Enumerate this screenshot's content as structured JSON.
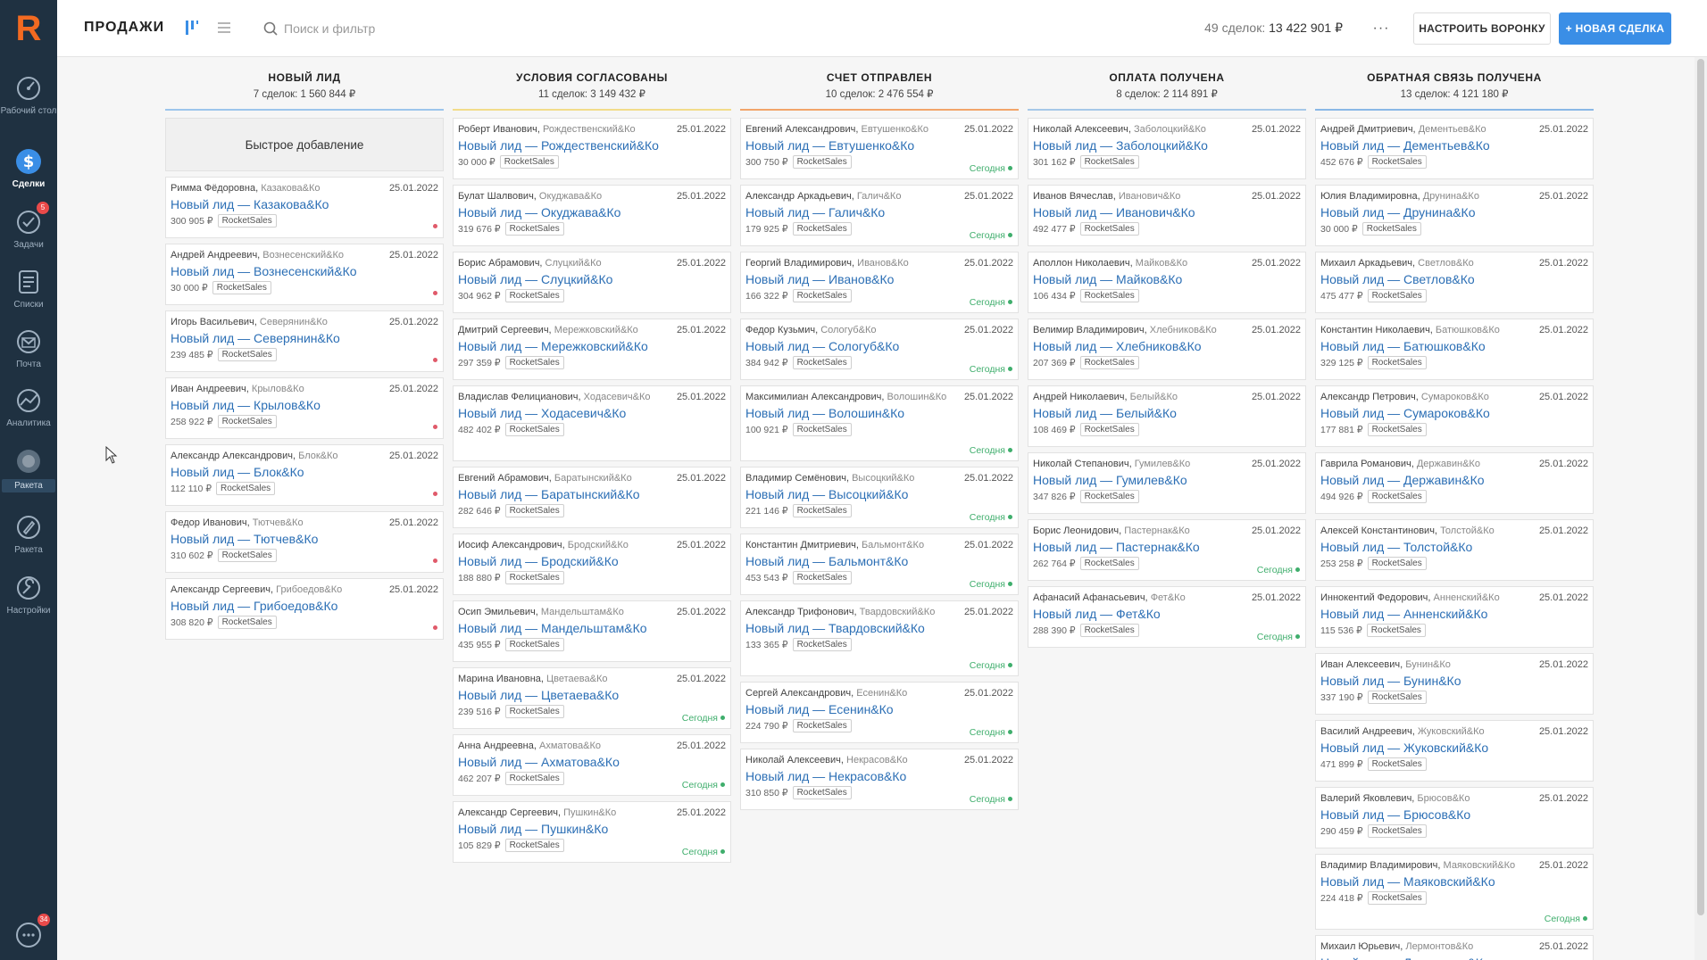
{
  "sidebar": {
    "logo": "R",
    "items": [
      {
        "label": "Рабочий стол",
        "icon": "dashboard-icon"
      },
      {
        "label": "Сделки",
        "icon": "deals-icon"
      },
      {
        "label": "Задачи",
        "icon": "tasks-icon",
        "badge": "5"
      },
      {
        "label": "Списки",
        "icon": "lists-icon"
      },
      {
        "label": "Почта",
        "icon": "mail-icon"
      },
      {
        "label": "Аналитика",
        "icon": "analytics-icon"
      },
      {
        "label": "Ракета",
        "icon": "rocket-circle-icon"
      },
      {
        "label": "Ракета",
        "icon": "rocket-icon"
      },
      {
        "label": "Настройки",
        "icon": "settings-icon"
      }
    ],
    "chat_badge": "34"
  },
  "header": {
    "title": "ПРОДАЖИ",
    "search_placeholder": "Поиск и фильтр",
    "summary_count": "49 сделок:",
    "summary_amount": "13 422 901 ₽",
    "more_label": "···",
    "funnel_label": "НАСТРОИТЬ ВОРОНКУ",
    "new_deal_label": "+ НОВАЯ СДЕЛКА"
  },
  "colors": {
    "accent": "#3a8ee6",
    "link": "#2c6fb5",
    "today": "#3fae6c",
    "overdue": "#e05a6a",
    "col_bars": [
      "#9cc5ec",
      "#f2dc8a",
      "#f2a56a",
      "#a6c8e8",
      "#8ab8e6"
    ]
  },
  "board": {
    "quick_add": "Быстрое добавление",
    "tag": "RocketSales",
    "date": "25.01.2022",
    "today_label": "Сегодня",
    "columns": [
      {
        "title": "НОВЫЙ ЛИД",
        "subtitle": "7 сделок: 1 560 844 ₽",
        "quick_add": true,
        "cards": [
          {
            "contact": "Римма Фёдоровна,",
            "company": "Казакова&Ко",
            "title": "Новый лид — Казакова&Ко",
            "amount": "300 905 ₽",
            "status": "dot"
          },
          {
            "contact": "Андрей Андреевич,",
            "company": "Вознесенский&Ко",
            "title": "Новый лид — Вознесенский&Ко",
            "amount": "30 000 ₽",
            "status": "dot"
          },
          {
            "contact": "Игорь Васильевич,",
            "company": "Северянин&Ко",
            "title": "Новый лид — Северянин&Ко",
            "amount": "239 485 ₽",
            "status": "dot"
          },
          {
            "contact": "Иван Андреевич,",
            "company": "Крылов&Ко",
            "title": "Новый лид — Крылов&Ко",
            "amount": "258 922 ₽",
            "status": "dot"
          },
          {
            "contact": "Александр Александрович,",
            "company": "Блок&Ко",
            "title": "Новый лид — Блок&Ко",
            "amount": "112 110 ₽",
            "status": "dot"
          },
          {
            "contact": "Федор Иванович,",
            "company": "Тютчев&Ко",
            "title": "Новый лид — Тютчев&Ко",
            "amount": "310 602 ₽",
            "status": "dot"
          },
          {
            "contact": "Александр Сергеевич,",
            "company": "Грибоедов&Ко",
            "title": "Новый лид — Грибоедов&Ко",
            "amount": "308 820 ₽",
            "status": "dot"
          }
        ]
      },
      {
        "title": "УСЛОВИЯ СОГЛАСОВАНЫ",
        "subtitle": "11 сделок: 3 149 432 ₽",
        "cards": [
          {
            "contact": "Роберт Иванович,",
            "company": "Рождественский&Ко",
            "title": "Новый лид — Рождественский&Ко",
            "amount": "30 000 ₽",
            "status": ""
          },
          {
            "contact": "Булат Шалвович,",
            "company": "Окуджава&Ко",
            "title": "Новый лид — Окуджава&Ко",
            "amount": "319 676 ₽",
            "status": ""
          },
          {
            "contact": "Борис Абрамович,",
            "company": "Слуцкий&Ко",
            "title": "Новый лид — Слуцкий&Ко",
            "amount": "304 962 ₽",
            "status": ""
          },
          {
            "contact": "Дмитрий Сергеевич,",
            "company": "Мережковский&Ко",
            "title": "Новый лид — Мережковский&Ко",
            "amount": "297 359 ₽",
            "status": ""
          },
          {
            "contact": "Владислав Фелицианович,",
            "company": "Ходасевич&Ко",
            "title": "Новый лид — Ходасевич&Ко",
            "amount": "482 402 ₽",
            "status": "",
            "tall": true
          },
          {
            "contact": "Евгений Абрамович,",
            "company": "Баратынский&Ко",
            "title": "Новый лид — Баратынский&Ко",
            "amount": "282 646 ₽",
            "status": ""
          },
          {
            "contact": "Иосиф Александрович,",
            "company": "Бродский&Ко",
            "title": "Новый лид — Бродский&Ко",
            "amount": "188 880 ₽",
            "status": ""
          },
          {
            "contact": "Осип Эмильевич,",
            "company": "Мандельштам&Ко",
            "title": "Новый лид — Мандельштам&Ко",
            "amount": "435 955 ₽",
            "status": ""
          },
          {
            "contact": "Марина Ивановна,",
            "company": "Цветаева&Ко",
            "title": "Новый лид — Цветаева&Ко",
            "amount": "239 516 ₽",
            "status": "today"
          },
          {
            "contact": "Анна Андреевна,",
            "company": "Ахматова&Ко",
            "title": "Новый лид — Ахматова&Ко",
            "amount": "462 207 ₽",
            "status": "today"
          },
          {
            "contact": "Александр Сергеевич,",
            "company": "Пушкин&Ко",
            "title": "Новый лид — Пушкин&Ко",
            "amount": "105 829 ₽",
            "status": "today"
          }
        ]
      },
      {
        "title": "СЧЕТ ОТПРАВЛЕН",
        "subtitle": "10 сделок: 2 476 554 ₽",
        "cards": [
          {
            "contact": "Евгений Александрович,",
            "company": "Евтушенко&Ко",
            "title": "Новый лид — Евтушенко&Ко",
            "amount": "300 750 ₽",
            "status": "today"
          },
          {
            "contact": "Александр Аркадьевич,",
            "company": "Галич&Ко",
            "title": "Новый лид — Галич&Ко",
            "amount": "179 925 ₽",
            "status": "today"
          },
          {
            "contact": "Георгий Владимирович,",
            "company": "Иванов&Ко",
            "title": "Новый лид — Иванов&Ко",
            "amount": "166 322 ₽",
            "status": "today"
          },
          {
            "contact": "Федор Кузьмич,",
            "company": "Сологуб&Ко",
            "title": "Новый лид — Сологуб&Ко",
            "amount": "384 942 ₽",
            "status": "today"
          },
          {
            "contact": "Максимилиан Александрович,",
            "company": "Волошин&Ко",
            "title": "Новый лид — Волошин&Ко",
            "amount": "100 921 ₽",
            "status": "today",
            "tall": true
          },
          {
            "contact": "Владимир Семёнович,",
            "company": "Высоцкий&Ко",
            "title": "Новый лид — Высоцкий&Ко",
            "amount": "221 146 ₽",
            "status": "today"
          },
          {
            "contact": "Константин Дмитриевич,",
            "company": "Бальмонт&Ко",
            "title": "Новый лид — Бальмонт&Ко",
            "amount": "453 543 ₽",
            "status": "today"
          },
          {
            "contact": "Александр Трифонович,",
            "company": "Твардовский&Ко",
            "title": "Новый лид — Твардовский&Ко",
            "amount": "133 365 ₽",
            "status": "today",
            "tall": true
          },
          {
            "contact": "Сергей Александрович,",
            "company": "Есенин&Ко",
            "title": "Новый лид — Есенин&Ко",
            "amount": "224 790 ₽",
            "status": "today"
          },
          {
            "contact": "Николай Алексеевич,",
            "company": "Некрасов&Ко",
            "title": "Новый лид — Некрасов&Ко",
            "amount": "310 850 ₽",
            "status": "today"
          }
        ]
      },
      {
        "title": "ОПЛАТА ПОЛУЧЕНА",
        "subtitle": "8 сделок: 2 114 891 ₽",
        "cards": [
          {
            "contact": "Николай Алексеевич,",
            "company": "Заболоцкий&Ко",
            "title": "Новый лид — Заболоцкий&Ко",
            "amount": "301 162 ₽",
            "status": ""
          },
          {
            "contact": "Иванов Вячеслав,",
            "company": "Иванович&Ко",
            "title": "Новый лид — Иванович&Ко",
            "amount": "492 477 ₽",
            "status": ""
          },
          {
            "contact": "Аполлон Николаевич,",
            "company": "Майков&Ко",
            "title": "Новый лид — Майков&Ко",
            "amount": "106 434 ₽",
            "status": ""
          },
          {
            "contact": "Велимир Владимирович,",
            "company": "Хлебников&Ко",
            "title": "Новый лид — Хлебников&Ко",
            "amount": "207 369 ₽",
            "status": ""
          },
          {
            "contact": "Андрей Николаевич,",
            "company": "Белый&Ко",
            "title": "Новый лид — Белый&Ко",
            "amount": "108 469 ₽",
            "status": ""
          },
          {
            "contact": "Николай Степанович,",
            "company": "Гумилев&Ко",
            "title": "Новый лид — Гумилев&Ко",
            "amount": "347 826 ₽",
            "status": ""
          },
          {
            "contact": "Борис Леонидович,",
            "company": "Пастернак&Ко",
            "title": "Новый лид — Пастернак&Ко",
            "amount": "262 764 ₽",
            "status": "today"
          },
          {
            "contact": "Афанасий Афанасьевич,",
            "company": "Фет&Ко",
            "title": "Новый лид — Фет&Ко",
            "amount": "288 390 ₽",
            "status": "today"
          }
        ]
      },
      {
        "title": "ОБРАТНАЯ СВЯЗЬ ПОЛУЧЕНА",
        "subtitle": "13 сделок: 4 121 180 ₽",
        "cards": [
          {
            "contact": "Андрей Дмитриевич,",
            "company": "Дементьев&Ко",
            "title": "Новый лид — Дементьев&Ко",
            "amount": "452 676 ₽",
            "status": ""
          },
          {
            "contact": "Юлия Владимировна,",
            "company": "Друнина&Ко",
            "title": "Новый лид — Друнина&Ко",
            "amount": "30 000 ₽",
            "status": ""
          },
          {
            "contact": "Михаил Аркадьевич,",
            "company": "Светлов&Ко",
            "title": "Новый лид — Светлов&Ко",
            "amount": "475 477 ₽",
            "status": ""
          },
          {
            "contact": "Константин Николаевич,",
            "company": "Батюшков&Ко",
            "title": "Новый лид — Батюшков&Ко",
            "amount": "329 125 ₽",
            "status": ""
          },
          {
            "contact": "Александр Петрович,",
            "company": "Сумароков&Ко",
            "title": "Новый лид — Сумароков&Ко",
            "amount": "177 881 ₽",
            "status": ""
          },
          {
            "contact": "Гаврила Романович,",
            "company": "Державин&Ко",
            "title": "Новый лид — Державин&Ко",
            "amount": "494 926 ₽",
            "status": ""
          },
          {
            "contact": "Алексей Константинович,",
            "company": "Толстой&Ко",
            "title": "Новый лид — Толстой&Ко",
            "amount": "253 258 ₽",
            "status": ""
          },
          {
            "contact": "Иннокентий Федорович,",
            "company": "Анненский&Ко",
            "title": "Новый лид — Анненский&Ко",
            "amount": "115 536 ₽",
            "status": ""
          },
          {
            "contact": "Иван Алексеевич,",
            "company": "Бунин&Ко",
            "title": "Новый лид — Бунин&Ко",
            "amount": "337 190 ₽",
            "status": ""
          },
          {
            "contact": "Василий Андреевич,",
            "company": "Жуковский&Ко",
            "title": "Новый лид — Жуковский&Ко",
            "amount": "471 899 ₽",
            "status": ""
          },
          {
            "contact": "Валерий Яковлевич,",
            "company": "Брюсов&Ко",
            "title": "Новый лид — Брюсов&Ко",
            "amount": "290 459 ₽",
            "status": ""
          },
          {
            "contact": "Владимир Владимирович,",
            "company": "Маяковский&Ко",
            "title": "Новый лид — Маяковский&Ко",
            "amount": "224 418 ₽",
            "status": "today",
            "tall": true
          },
          {
            "contact": "Михаил Юрьевич,",
            "company": "Лермонтов&Ко",
            "title": "Новый лид — Лермонтов&Ко",
            "amount": "",
            "status": ""
          }
        ]
      }
    ]
  }
}
